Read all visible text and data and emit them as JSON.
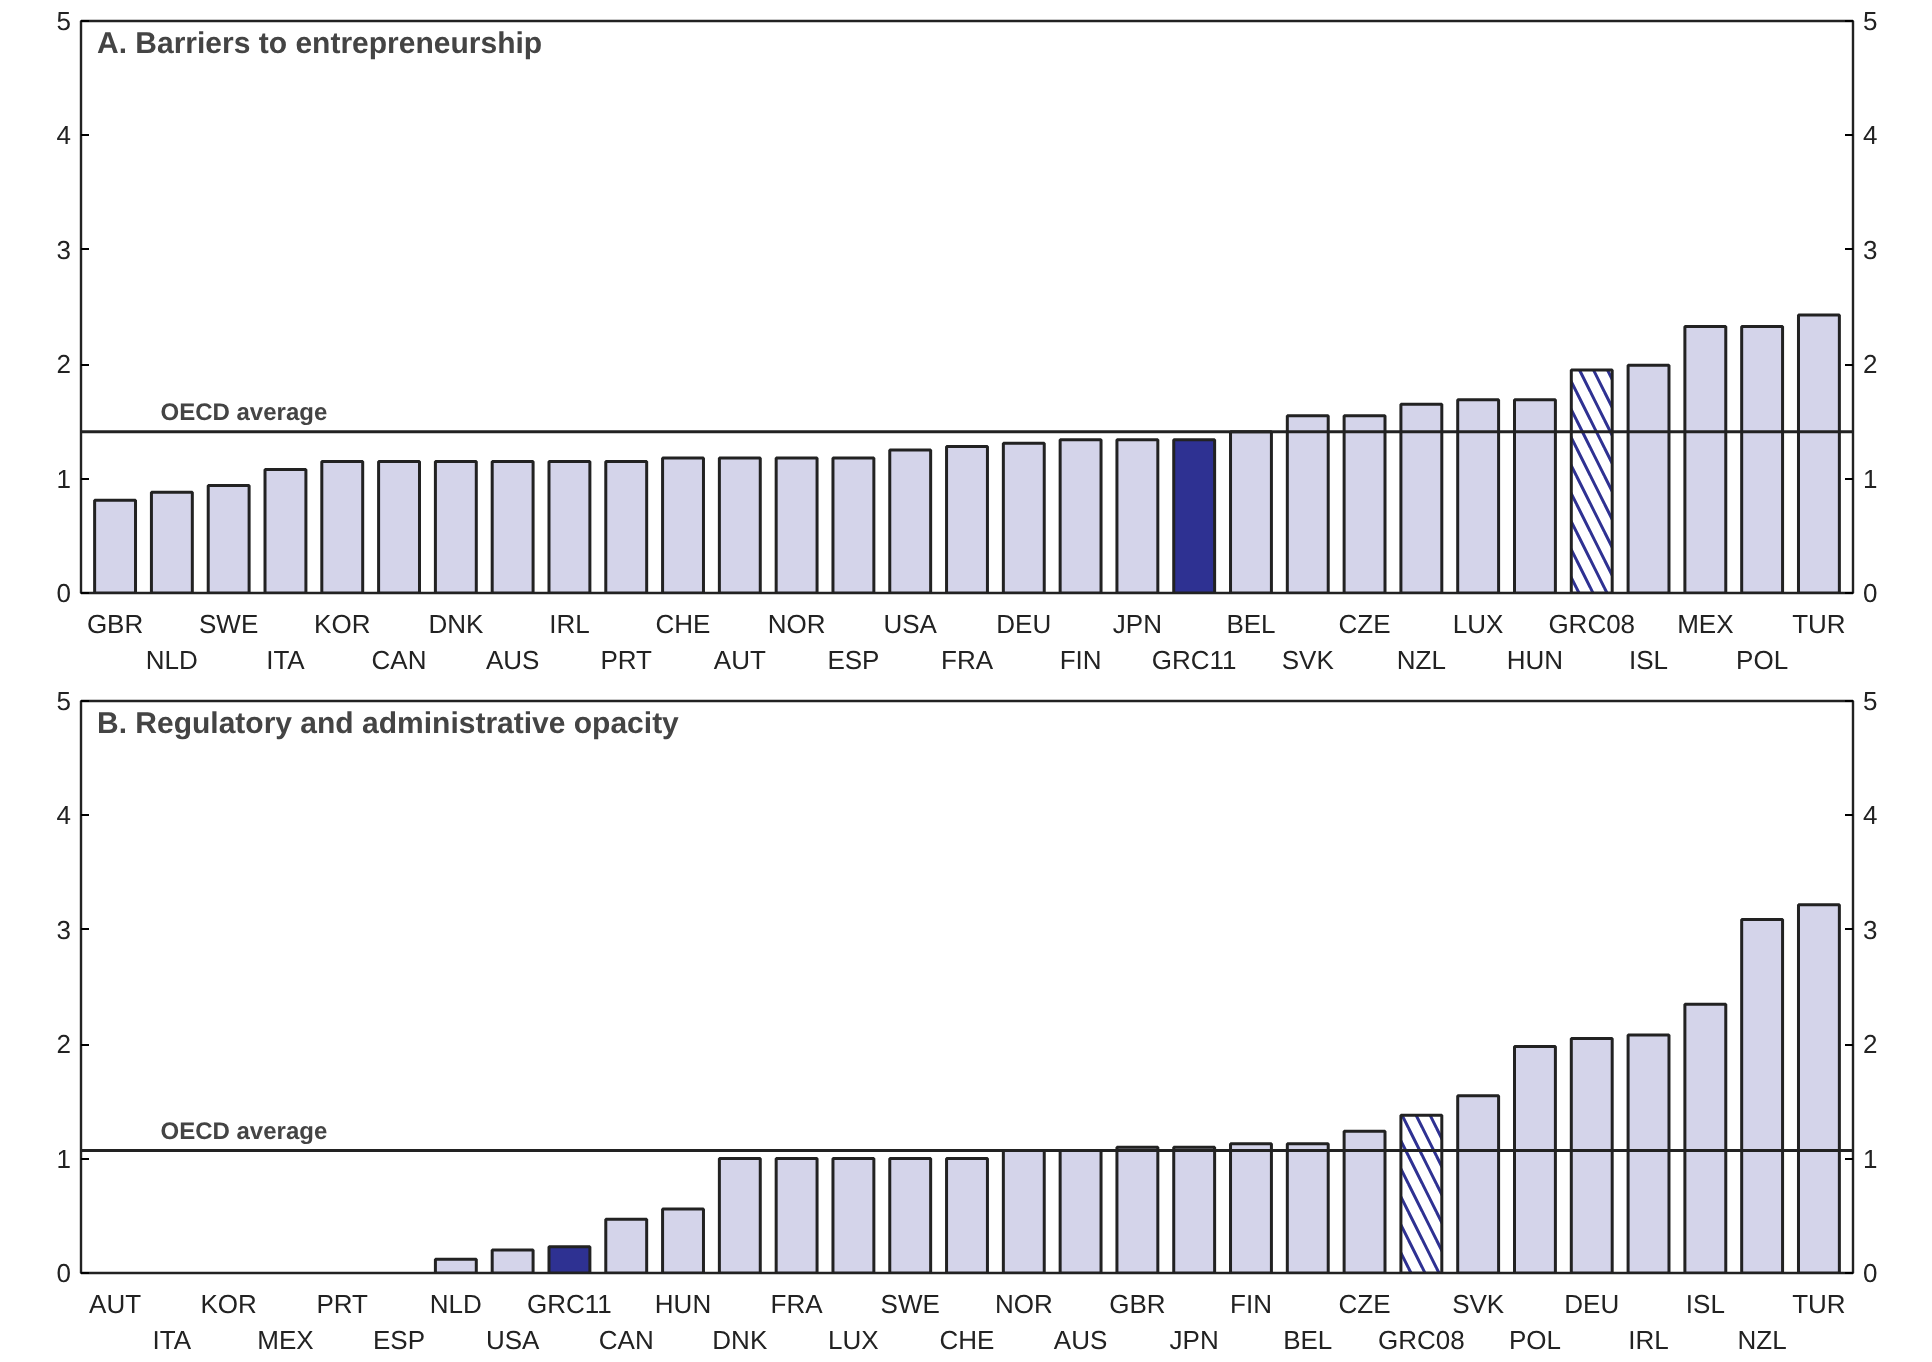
{
  "chart_data": [
    {
      "type": "bar",
      "title": "A. Barriers to entrepreneurship",
      "categories": [
        "GBR",
        "NLD",
        "SWE",
        "ITA",
        "KOR",
        "CAN",
        "DNK",
        "AUS",
        "IRL",
        "PRT",
        "CHE",
        "AUT",
        "NOR",
        "ESP",
        "USA",
        "FRA",
        "DEU",
        "FIN",
        "JPN",
        "GRC11",
        "BEL",
        "SVK",
        "CZE",
        "NZL",
        "LUX",
        "HUN",
        "GRC08",
        "ISL",
        "MEX",
        "POL",
        "TUR"
      ],
      "values": [
        0.81,
        0.88,
        0.94,
        1.08,
        1.15,
        1.15,
        1.15,
        1.15,
        1.15,
        1.15,
        1.18,
        1.18,
        1.18,
        1.18,
        1.25,
        1.28,
        1.31,
        1.34,
        1.34,
        1.34,
        1.41,
        1.55,
        1.55,
        1.65,
        1.69,
        1.69,
        1.95,
        1.99,
        2.33,
        2.33,
        2.43
      ],
      "colors": [
        "#d4d4ea",
        "#d4d4ea",
        "#d4d4ea",
        "#d4d4ea",
        "#d4d4ea",
        "#d4d4ea",
        "#d4d4ea",
        "#d4d4ea",
        "#d4d4ea",
        "#d4d4ea",
        "#d4d4ea",
        "#d4d4ea",
        "#d4d4ea",
        "#d4d4ea",
        "#d4d4ea",
        "#d4d4ea",
        "#d4d4ea",
        "#d4d4ea",
        "#d4d4ea",
        "#2e3192",
        "#d4d4ea",
        "#d4d4ea",
        "#d4d4ea",
        "#d4d4ea",
        "#d4d4ea",
        "#d4d4ea",
        "#ffffff",
        "#d4d4ea",
        "#d4d4ea",
        "#d4d4ea",
        "#d4d4ea"
      ],
      "ylim": [
        0,
        5
      ],
      "yticks": [
        0,
        1,
        2,
        3,
        4,
        5
      ],
      "y2lim": [
        0,
        5
      ],
      "y2ticks": [
        0,
        1,
        2,
        3,
        4,
        5
      ],
      "ref_lines": [
        {
          "axis": "y",
          "value": 1.41,
          "label": "OECD average"
        }
      ]
    },
    {
      "type": "bar",
      "title": "B. Regulatory and administrative opacity",
      "categories": [
        "AUT",
        "ITA",
        "KOR",
        "MEX",
        "PRT",
        "ESP",
        "NLD",
        "USA",
        "GRC11",
        "CAN",
        "HUN",
        "DNK",
        "FRA",
        "LUX",
        "SWE",
        "CHE",
        "NOR",
        "AUS",
        "GBR",
        "JPN",
        "FIN",
        "BEL",
        "CZE",
        "GRC08",
        "SVK",
        "POL",
        "DEU",
        "IRL",
        "ISL",
        "NZL",
        "TUR"
      ],
      "values": [
        0,
        0,
        0,
        0,
        0,
        0,
        0.12,
        0.2,
        0.23,
        0.47,
        0.56,
        1.0,
        1.0,
        1.0,
        1.0,
        1.0,
        1.07,
        1.07,
        1.1,
        1.1,
        1.13,
        1.13,
        1.24,
        1.38,
        1.55,
        1.98,
        2.05,
        2.08,
        2.35,
        3.09,
        3.22
      ],
      "colors": [
        "#d4d4ea",
        "#d4d4ea",
        "#d4d4ea",
        "#d4d4ea",
        "#d4d4ea",
        "#d4d4ea",
        "#d4d4ea",
        "#d4d4ea",
        "#2e3192",
        "#d4d4ea",
        "#d4d4ea",
        "#d4d4ea",
        "#d4d4ea",
        "#d4d4ea",
        "#d4d4ea",
        "#d4d4ea",
        "#d4d4ea",
        "#d4d4ea",
        "#d4d4ea",
        "#d4d4ea",
        "#d4d4ea",
        "#d4d4ea",
        "#d4d4ea",
        "#ffffff",
        "#d4d4ea",
        "#d4d4ea",
        "#d4d4ea",
        "#d4d4ea",
        "#d4d4ea",
        "#d4d4ea",
        "#d4d4ea"
      ],
      "ylim": [
        0,
        5
      ],
      "yticks": [
        0,
        1,
        2,
        3,
        4,
        5
      ],
      "y2lim": [
        0,
        5
      ],
      "y2ticks": [
        0,
        1,
        2,
        3,
        4,
        5
      ],
      "ref_lines": [
        {
          "axis": "y",
          "value": 1.07,
          "label": "OECD average"
        }
      ]
    }
  ]
}
